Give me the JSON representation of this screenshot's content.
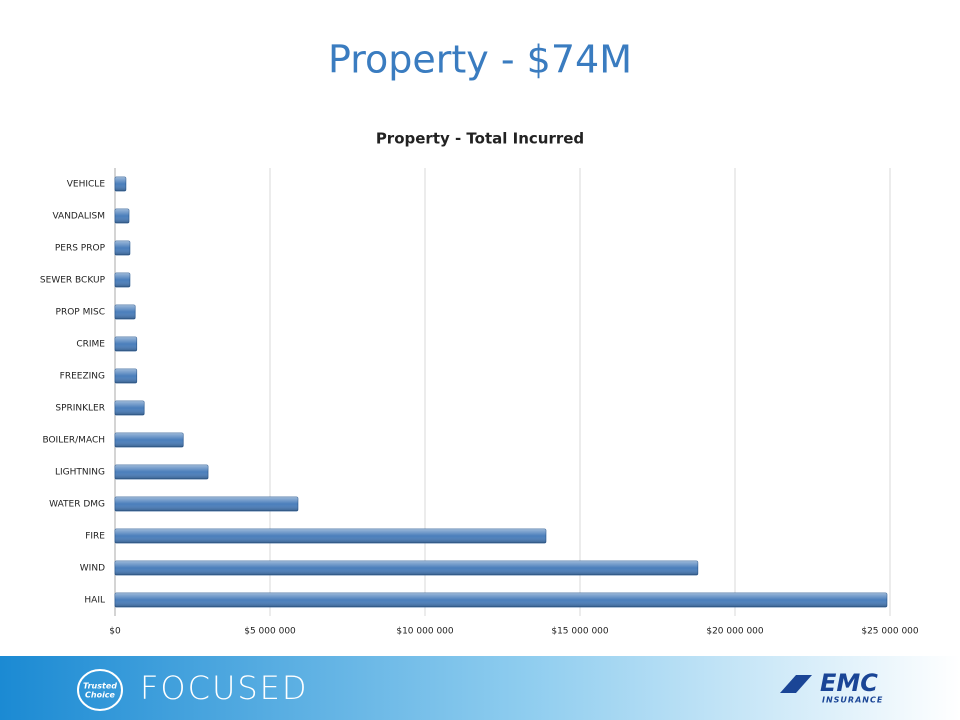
{
  "header": {
    "title": "Property - $74M"
  },
  "chart_data": {
    "type": "hbar",
    "title": "Property - Total Incurred",
    "categories": [
      "VEHICLE",
      "VANDALISM",
      "PERS PROP",
      "SEWER BCKUP",
      "PROP MISC",
      "CRIME",
      "FREEZING",
      "SPRINKLER",
      "BOILER/MACH",
      "LIGHTNING",
      "WATER DMG",
      "FIRE",
      "WIND",
      "HAIL"
    ],
    "values": [
      350000,
      450000,
      480000,
      480000,
      650000,
      700000,
      700000,
      940000,
      2200000,
      3000000,
      5900000,
      13900000,
      18800000,
      24900000
    ],
    "color": "#4a7ebb",
    "xlim": [
      0,
      25000000
    ],
    "xticks": [
      {
        "value": 0,
        "label": "$0"
      },
      {
        "value": 5000000,
        "label": "$5 000 000"
      },
      {
        "value": 10000000,
        "label": "$10 000 000"
      },
      {
        "value": 15000000,
        "label": "$15 000 000"
      },
      {
        "value": 20000000,
        "label": "$20 000 000"
      },
      {
        "value": 25000000,
        "label": "$25 000 000"
      }
    ],
    "grid": true
  },
  "footer": {
    "badge_top": "Trusted",
    "badge_bottom": "Choice",
    "tagline": "FOCUSED",
    "logo": "EMC",
    "logo_sub": "INSURANCE"
  }
}
